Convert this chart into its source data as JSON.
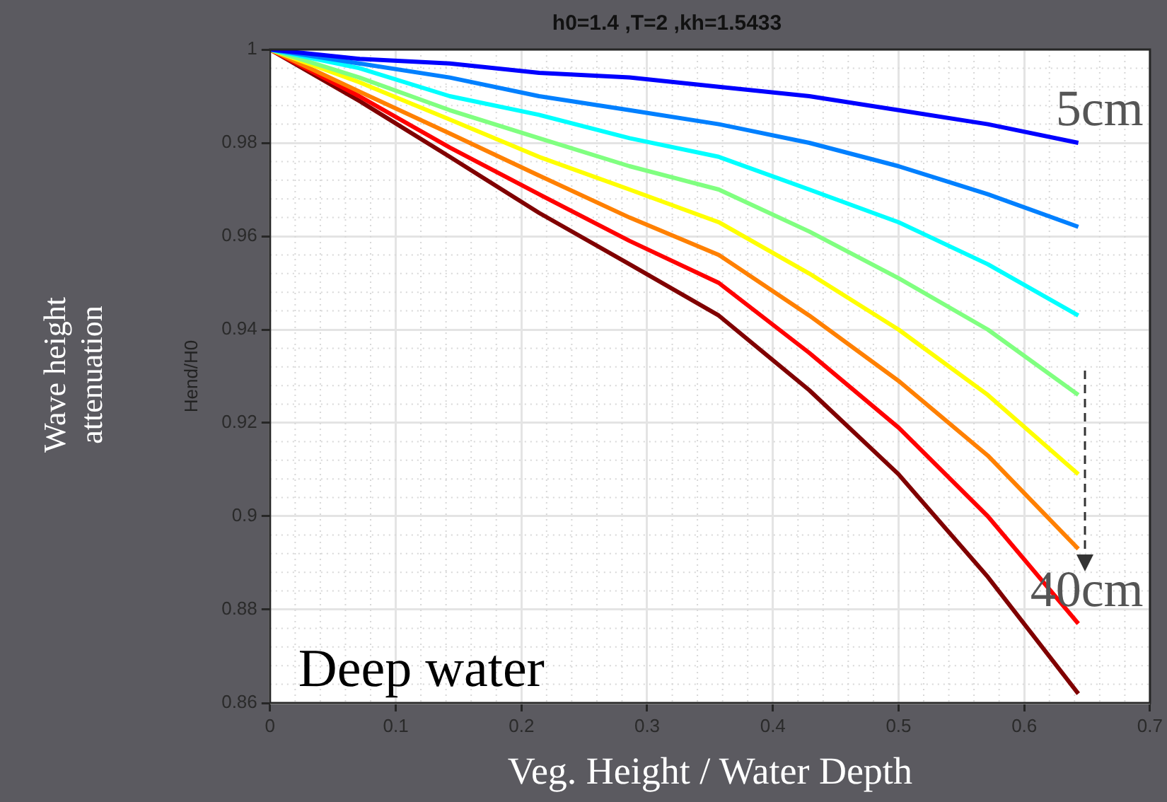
{
  "chart_data": {
    "type": "line",
    "title": "h0=1.4 ,T=2 ,kh=1.5433",
    "xlabel": "Veg. Height / Water Depth",
    "ylabel": "Hend/H0",
    "x": [
      0,
      0.071,
      0.143,
      0.214,
      0.286,
      0.357,
      0.429,
      0.5,
      0.571,
      0.643
    ],
    "series": [
      {
        "color": "#0000ff",
        "values": [
          1,
          0.998,
          0.997,
          0.995,
          0.994,
          0.992,
          0.99,
          0.987,
          0.984,
          0.98
        ]
      },
      {
        "color": "#0080ff",
        "values": [
          1,
          0.997,
          0.994,
          0.99,
          0.987,
          0.984,
          0.98,
          0.975,
          0.969,
          0.962
        ]
      },
      {
        "color": "#00ffff",
        "values": [
          1,
          0.996,
          0.99,
          0.986,
          0.981,
          0.977,
          0.97,
          0.963,
          0.954,
          0.943
        ]
      },
      {
        "color": "#80ff80",
        "values": [
          1,
          0.994,
          0.987,
          0.981,
          0.975,
          0.97,
          0.961,
          0.951,
          0.94,
          0.926
        ]
      },
      {
        "color": "#ffff00",
        "values": [
          1,
          0.993,
          0.985,
          0.977,
          0.97,
          0.963,
          0.952,
          0.94,
          0.926,
          0.909
        ]
      },
      {
        "color": "#ff8000",
        "values": [
          1,
          0.991,
          0.982,
          0.973,
          0.964,
          0.956,
          0.943,
          0.929,
          0.913,
          0.893
        ]
      },
      {
        "color": "#ff0000",
        "values": [
          1,
          0.99,
          0.979,
          0.969,
          0.959,
          0.95,
          0.935,
          0.919,
          0.9,
          0.877
        ]
      },
      {
        "color": "#800000",
        "values": [
          1,
          0.989,
          0.977,
          0.965,
          0.954,
          0.943,
          0.927,
          0.909,
          0.887,
          0.862
        ]
      }
    ],
    "xlim": [
      0,
      0.7
    ],
    "xticks": [
      0,
      0.1,
      0.2,
      0.3,
      0.4,
      0.5,
      0.6,
      0.7
    ],
    "ylim": [
      0.86,
      1
    ],
    "yticks": [
      0.86,
      0.88,
      0.9,
      0.92,
      0.94,
      0.96,
      0.98,
      1
    ],
    "grid": true,
    "legend": false,
    "marker": "none",
    "line_style": "solid",
    "annotations": [
      {
        "text": "5cm",
        "x": 0.643,
        "y": 0.98
      },
      {
        "text": "40cm",
        "x": 0.643,
        "y": 0.877
      },
      "Deep water",
      "Wave height attenuation"
    ]
  }
}
